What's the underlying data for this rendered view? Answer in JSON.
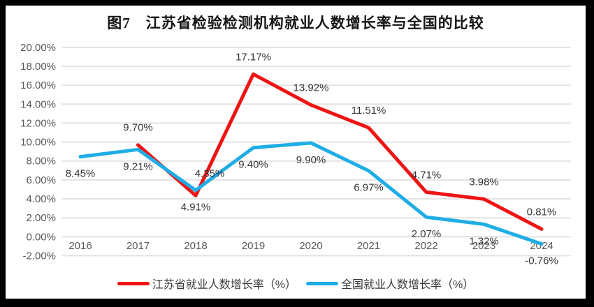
{
  "title": "图7　江苏省检验检测机构就业人数增长率与全国的比较",
  "chart_data": {
    "type": "line",
    "categories": [
      "2016",
      "2017",
      "2018",
      "2019",
      "2020",
      "2021",
      "2022",
      "2023",
      "2024"
    ],
    "series": [
      {
        "name": "江苏省就业人数增长率（%）",
        "color": "#ee1414",
        "values": [
          null,
          9.7,
          4.35,
          17.17,
          13.92,
          11.51,
          4.71,
          3.98,
          0.81
        ],
        "point_labels": [
          "",
          "9.70%",
          "4.35%",
          "17.17%",
          "13.92%",
          "11.51%",
          "4.71%",
          "3.98%",
          "0.81%"
        ],
        "label_position": "above"
      },
      {
        "name": "全国就业人数增长率（%）",
        "color": "#1fade6",
        "values": [
          8.45,
          9.21,
          4.91,
          9.4,
          9.9,
          6.97,
          2.07,
          1.32,
          -0.76
        ],
        "point_labels": [
          "8.45%",
          "9.21%",
          "4.91%",
          "9.40%",
          "9.90%",
          "6.97%",
          "2.07%",
          "1.32%",
          "-0.76%"
        ],
        "label_position": "below"
      }
    ],
    "y_ticks": [
      "20.00%",
      "18.00%",
      "16.00%",
      "14.00%",
      "12.00%",
      "10.00%",
      "8.00%",
      "6.00%",
      "4.00%",
      "2.00%",
      "0.00%",
      "-2.00%"
    ],
    "y_tick_values": [
      20,
      18,
      16,
      14,
      12,
      10,
      8,
      6,
      4,
      2,
      0,
      -2
    ],
    "ylim": [
      -2,
      20
    ],
    "grid": true,
    "legend_position": "bottom",
    "xlabel": "",
    "ylabel": ""
  },
  "colors": {
    "grid": "#e3e3e3",
    "axis_text": "#595959",
    "data_label": "#353535",
    "frame": "#000000",
    "background": "#ffffff"
  }
}
